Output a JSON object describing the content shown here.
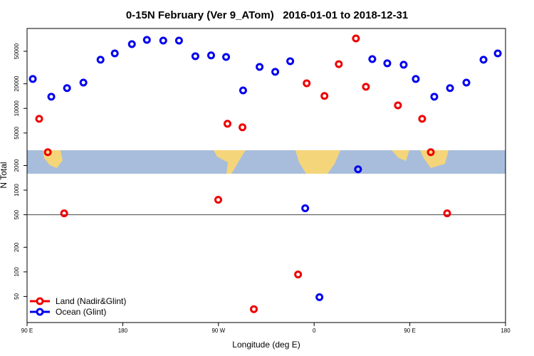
{
  "chart_data": {
    "type": "scatter",
    "title": "0-15N February (Ver 9_ATom)   2016-01-01 to 2018-12-31",
    "x_label": "Longitude (deg E)",
    "y_label": "N Total",
    "log_y": true,
    "xlim": [
      90,
      540
    ],
    "ylim": [
      24,
      95000
    ],
    "xticks": [
      {
        "value": 90,
        "label": "90 E"
      },
      180,
      {
        "value": 270,
        "label": "90 W"
      },
      {
        "value": 360,
        "label": "0"
      },
      {
        "value": 450,
        "label": "90 E"
      },
      {
        "value": 540,
        "label": "180"
      }
    ],
    "yticks": [
      50,
      100,
      200,
      500,
      1000,
      2000,
      5000,
      10000,
      20000,
      50000
    ],
    "hline": 500,
    "legend": "bottom-left",
    "series": [
      {
        "name": "Land (Nadir&Glint)",
        "color": "#ee0000",
        "x": [
          101.4,
          109.5,
          124.9,
          269.8,
          278.5,
          292.6,
          303.3,
          344.9,
          353,
          369.7,
          383.2,
          399.3,
          408.7,
          438.8,
          461.6,
          469.7,
          485.1
        ],
        "values": [
          7460,
          2910,
          520,
          762,
          6490,
          5870,
          35,
          93,
          20300,
          14200,
          34800,
          71800,
          18400,
          10900,
          7460,
          2910,
          520
        ]
      },
      {
        "name": "Ocean (Glint)",
        "color": "#0000ee",
        "x": [
          95.4,
          112.8,
          127.6,
          143,
          159.1,
          172.5,
          188.6,
          202.7,
          218.1,
          232.9,
          248.3,
          263.1,
          277.2,
          293.2,
          308.7,
          323.4,
          337.5,
          351.6,
          365,
          401.3,
          414.7,
          428.8,
          444.2,
          455.6,
          473,
          487.8,
          503.2,
          519.3,
          532.7
        ],
        "values": [
          22900,
          13900,
          17700,
          20700,
          39400,
          47100,
          61100,
          68900,
          67500,
          67500,
          43500,
          44500,
          42600,
          16600,
          32200,
          28000,
          37800,
          600,
          49,
          1800,
          40100,
          35600,
          34200,
          22900,
          13900,
          17700,
          20700,
          39400,
          47100
        ]
      }
    ]
  }
}
